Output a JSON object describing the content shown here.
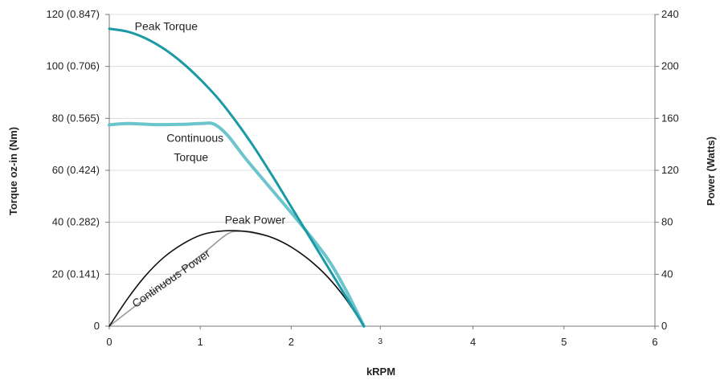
{
  "chart_data": {
    "type": "line",
    "title": "",
    "xlabel": "kRPM",
    "ylabel_left": "Torque oz-in (Nm)",
    "ylabel_right": "Power (Watts)",
    "xlim": [
      0,
      6
    ],
    "ylim_left": [
      0,
      120
    ],
    "ylim_right": [
      0,
      240
    ],
    "grid": true,
    "x_ticks": [
      {
        "value": 0,
        "label": "0"
      },
      {
        "value": 1,
        "label": "1"
      },
      {
        "value": 2,
        "label": "2"
      },
      {
        "value": 2.98,
        "label": "3"
      },
      {
        "value": 4,
        "label": "4"
      },
      {
        "value": 5,
        "label": "5"
      },
      {
        "value": 6,
        "label": "6"
      }
    ],
    "y_left_ticks": [
      {
        "value": 0,
        "label": "0"
      },
      {
        "value": 20,
        "label": "20 (0.141)"
      },
      {
        "value": 40,
        "label": "40 (0.282)"
      },
      {
        "value": 60,
        "label": "60 (0.424)"
      },
      {
        "value": 80,
        "label": "80 (0.565)"
      },
      {
        "value": 100,
        "label": "100 (0.706)"
      },
      {
        "value": 120,
        "label": "120 (0.847)"
      }
    ],
    "y_right_ticks": [
      {
        "value": 0,
        "label": "0"
      },
      {
        "value": 40,
        "label": "40"
      },
      {
        "value": 80,
        "label": "80"
      },
      {
        "value": 120,
        "label": "120"
      },
      {
        "value": 160,
        "label": "160"
      },
      {
        "value": 200,
        "label": "200"
      },
      {
        "value": 240,
        "label": "240"
      }
    ],
    "series": [
      {
        "name": "Peak Torque",
        "axis": "left",
        "color": "#1a9aa5",
        "points": [
          [
            0,
            114.5
          ],
          [
            0.2,
            113.4
          ],
          [
            0.4,
            110.8
          ],
          [
            0.6,
            106.8
          ],
          [
            0.8,
            101.5
          ],
          [
            1.0,
            95.0
          ],
          [
            1.2,
            87.5
          ],
          [
            1.4,
            78.5
          ],
          [
            1.6,
            68.5
          ],
          [
            1.8,
            57.5
          ],
          [
            2.0,
            46.0
          ],
          [
            2.2,
            34.5
          ],
          [
            2.4,
            23.0
          ],
          [
            2.6,
            11.5
          ],
          [
            2.8,
            0
          ]
        ]
      },
      {
        "name": "Continuous Torque",
        "axis": "left",
        "color": "#6cc5cc",
        "points": [
          [
            0,
            77.5
          ],
          [
            0.2,
            78.0
          ],
          [
            0.5,
            77.6
          ],
          [
            0.8,
            77.7
          ],
          [
            1.0,
            78.0
          ],
          [
            1.15,
            77.8
          ],
          [
            1.3,
            73.5
          ],
          [
            1.5,
            64.5
          ],
          [
            1.8,
            52.0
          ],
          [
            2.1,
            39.5
          ],
          [
            2.4,
            26.0
          ],
          [
            2.6,
            14.0
          ],
          [
            2.8,
            0
          ]
        ]
      },
      {
        "name": "Peak Power",
        "axis": "right",
        "color": "#111111",
        "points": [
          [
            0,
            0
          ],
          [
            0.2,
            21
          ],
          [
            0.4,
            39
          ],
          [
            0.6,
            53
          ],
          [
            0.8,
            63
          ],
          [
            1.0,
            70
          ],
          [
            1.2,
            73
          ],
          [
            1.4,
            73.5
          ],
          [
            1.6,
            72
          ],
          [
            1.8,
            68
          ],
          [
            2.0,
            61
          ],
          [
            2.2,
            51
          ],
          [
            2.4,
            38
          ],
          [
            2.6,
            21
          ],
          [
            2.8,
            0
          ]
        ]
      },
      {
        "name": "Continuous Power",
        "axis": "right",
        "color": "#999999",
        "points": [
          [
            0,
            0
          ],
          [
            0.35,
            19
          ],
          [
            0.7,
            38
          ],
          [
            1.05,
            57
          ],
          [
            1.3,
            71
          ],
          [
            1.45,
            73
          ],
          [
            1.6,
            71.5
          ],
          [
            1.8,
            68
          ],
          [
            2.0,
            61
          ],
          [
            2.2,
            51
          ],
          [
            2.4,
            38
          ],
          [
            2.6,
            21
          ],
          [
            2.8,
            0
          ]
        ]
      }
    ],
    "annotations": [
      {
        "text": "Peak Torque",
        "x": 0.28,
        "y": 114
      },
      {
        "text": "Continuous",
        "x": 0.63,
        "y": 71
      },
      {
        "text": "Torque",
        "x": 0.71,
        "y": 63.5
      },
      {
        "text": "Peak Power",
        "x": 1.27,
        "y": 39.5
      },
      {
        "text": "Continuous Power",
        "x": 0.29,
        "y": 7,
        "rotate": -35
      }
    ]
  }
}
